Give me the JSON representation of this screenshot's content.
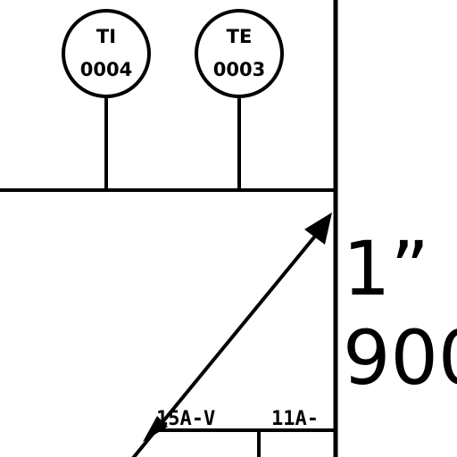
{
  "instruments": [
    {
      "function": "TI",
      "number": "0004"
    },
    {
      "function": "TE",
      "number": "0003"
    }
  ],
  "pipe_size": "1”",
  "partial_value": "900",
  "line_segments": [
    "15A-V",
    "11A-"
  ],
  "colors": {
    "ink": "#000000",
    "paper": "#ffffff"
  }
}
